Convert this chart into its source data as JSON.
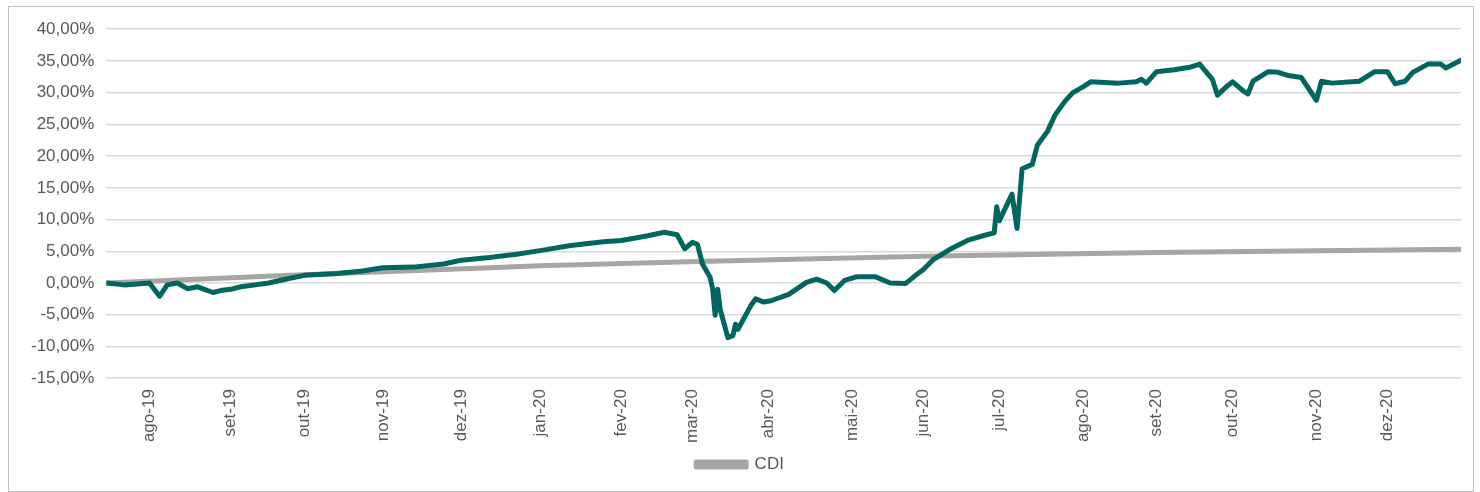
{
  "chart_data": {
    "type": "line",
    "x": [
      "2019-07-15",
      "2019-07-22",
      "2019-08-01",
      "2019-08-05",
      "2019-08-08",
      "2019-08-12",
      "2019-08-16",
      "2019-08-20",
      "2019-08-26",
      "2019-08-29",
      "2019-09-02",
      "2019-09-06",
      "2019-09-17",
      "2019-09-25",
      "2019-10-01",
      "2019-10-14",
      "2019-10-24",
      "2019-11-01",
      "2019-11-13",
      "2019-11-25",
      "2019-12-02",
      "2019-12-13",
      "2019-12-23",
      "2020-01-02",
      "2020-01-14",
      "2020-01-27",
      "2020-02-03",
      "2020-02-13",
      "2020-02-20",
      "2020-02-25",
      "2020-02-28",
      "2020-03-02",
      "2020-03-04",
      "2020-03-06",
      "2020-03-09",
      "2020-03-10",
      "2020-03-11",
      "2020-03-12",
      "2020-03-13",
      "2020-03-16",
      "2020-03-18",
      "2020-03-19",
      "2020-03-20",
      "2020-03-25",
      "2020-03-27",
      "2020-03-30",
      "2020-04-02",
      "2020-04-09",
      "2020-04-16",
      "2020-04-20",
      "2020-04-24",
      "2020-04-27",
      "2020-05-01",
      "2020-05-06",
      "2020-05-13",
      "2020-05-19",
      "2020-05-25",
      "2020-05-29",
      "2020-06-01",
      "2020-06-05",
      "2020-06-12",
      "2020-06-19",
      "2020-06-26",
      "2020-06-29",
      "2020-06-30",
      "2020-07-01",
      "2020-07-06",
      "2020-07-08",
      "2020-07-10",
      "2020-07-14",
      "2020-07-16",
      "2020-07-20",
      "2020-07-23",
      "2020-07-27",
      "2020-07-30",
      "2020-08-03",
      "2020-08-06",
      "2020-08-17",
      "2020-08-24",
      "2020-08-26",
      "2020-08-28",
      "2020-09-01",
      "2020-09-08",
      "2020-09-14",
      "2020-09-18",
      "2020-09-23",
      "2020-09-25",
      "2020-09-29",
      "2020-10-01",
      "2020-10-05",
      "2020-10-07",
      "2020-10-09",
      "2020-10-15",
      "2020-10-19",
      "2020-10-23",
      "2020-10-28",
      "2020-11-03",
      "2020-11-05",
      "2020-11-09",
      "2020-11-20",
      "2020-11-26",
      "2020-12-01",
      "2020-12-04",
      "2020-12-08",
      "2020-12-11",
      "2020-12-17",
      "2020-12-22",
      "2020-12-24",
      "2020-12-30"
    ],
    "series": [
      {
        "color": "#00665e",
        "values": [
          0,
          -0.3,
          0,
          -2.1,
          -0.3,
          0,
          -0.9,
          -0.6,
          -1.5,
          -1.2,
          -1.0,
          -0.6,
          0,
          0.7,
          1.2,
          1.5,
          1.9,
          2.4,
          2.5,
          3.0,
          3.6,
          4.0,
          4.5,
          5.1,
          5.9,
          6.5,
          6.7,
          7.4,
          8.0,
          7.6,
          5.4,
          6.4,
          6.1,
          3.0,
          0.9,
          -0.9,
          -5.1,
          -1.0,
          -4.2,
          -8.6,
          -8.3,
          -6.5,
          -7.3,
          -3.6,
          -2.5,
          -3.0,
          -2.8,
          -1.8,
          0.1,
          0.6,
          0,
          -1.2,
          0.4,
          1.0,
          1.0,
          0,
          -0.1,
          1.2,
          2.1,
          3.7,
          5.4,
          6.8,
          7.6,
          7.9,
          12.0,
          9.8,
          14.0,
          8.6,
          18.0,
          18.7,
          21.7,
          23.9,
          26.5,
          28.7,
          30.0,
          30.9,
          31.7,
          31.5,
          31.7,
          32.1,
          31.5,
          33.3,
          33.6,
          34.0,
          34.5,
          32.1,
          29.6,
          31.1,
          31.7,
          30.3,
          29.8,
          31.8,
          33.3,
          33.2,
          32.7,
          32.4,
          28.8,
          31.8,
          31.5,
          31.8,
          33.3,
          33.3,
          31.4,
          31.8,
          33.2,
          34.5,
          34.5,
          33.9,
          35.1
        ]
      },
      {
        "name": "CDI",
        "color": "#a9a5a4",
        "x": [
          "2019-07-15",
          "2019-10-01",
          "2020-01-02",
          "2020-03-04",
          "2020-06-01",
          "2020-09-01",
          "2020-12-30"
        ],
        "values": [
          0,
          1.3,
          2.7,
          3.4,
          4.2,
          4.8,
          5.3
        ]
      }
    ],
    "xlim": [
      "2019-07-15",
      "2020-12-30"
    ],
    "xticks": [
      {
        "value": "2019-08-01",
        "label": "ago-19"
      },
      {
        "value": "2019-09-02",
        "label": "set-19"
      },
      {
        "value": "2019-10-01",
        "label": "out-19"
      },
      {
        "value": "2019-11-01",
        "label": "nov-19"
      },
      {
        "value": "2019-12-02",
        "label": "dez-19"
      },
      {
        "value": "2020-01-02",
        "label": "jan-20"
      },
      {
        "value": "2020-02-03",
        "label": "fev-20"
      },
      {
        "value": "2020-03-02",
        "label": "mar-20"
      },
      {
        "value": "2020-04-01",
        "label": "abr-20"
      },
      {
        "value": "2020-05-04",
        "label": "mai-20"
      },
      {
        "value": "2020-06-01",
        "label": "jun-20"
      },
      {
        "value": "2020-07-01",
        "label": "jul-20"
      },
      {
        "value": "2020-08-03",
        "label": "ago-20"
      },
      {
        "value": "2020-09-01",
        "label": "set-20"
      },
      {
        "value": "2020-10-01",
        "label": "out-20"
      },
      {
        "value": "2020-11-03",
        "label": "nov-20"
      },
      {
        "value": "2020-12-01",
        "label": "dez-20"
      }
    ],
    "ylim": [
      -15,
      40
    ],
    "yticks": [
      {
        "value": -15,
        "label": "-15,00%"
      },
      {
        "value": -10,
        "label": "-10,00%"
      },
      {
        "value": -5,
        "label": "-5,00%"
      },
      {
        "value": 0,
        "label": "0,00%"
      },
      {
        "value": 5,
        "label": "5,00%"
      },
      {
        "value": 10,
        "label": "10,00%"
      },
      {
        "value": 15,
        "label": "15,00%"
      },
      {
        "value": 20,
        "label": "20,00%"
      },
      {
        "value": 25,
        "label": "25,00%"
      },
      {
        "value": 30,
        "label": "30,00%"
      },
      {
        "value": 35,
        "label": "35,00%"
      },
      {
        "value": 40,
        "label": "40,00%"
      }
    ],
    "grid": "y",
    "legend": "bottom",
    "marker": "none",
    "line_style": "solid"
  }
}
